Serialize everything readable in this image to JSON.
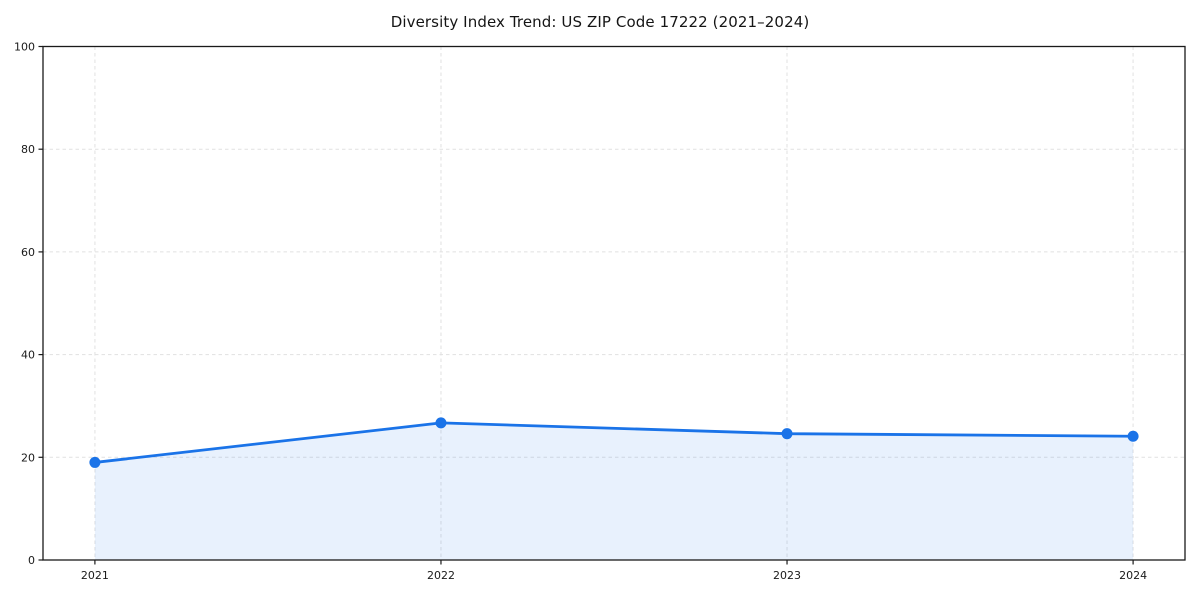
{
  "chart_data": {
    "type": "area",
    "title": "Diversity Index Trend: US ZIP Code 17222 (2021–2024)",
    "x": [
      2021,
      2022,
      2023,
      2024
    ],
    "x_tick_labels": [
      "2021",
      "2022",
      "2023",
      "2024"
    ],
    "series": [
      {
        "name": "Diversity Index",
        "values": [
          19.0,
          26.7,
          24.6,
          24.1
        ]
      }
    ],
    "xlabel": "",
    "ylabel": "",
    "ylim": [
      0,
      100
    ],
    "yticks": [
      0,
      20,
      40,
      60,
      80,
      100
    ],
    "ytick_labels": [
      "0",
      "20",
      "40",
      "60",
      "80",
      "100"
    ],
    "grid": true,
    "grid_style": "dashed",
    "legend_position": "none",
    "colors": {
      "line": "#1a73e8",
      "marker": "#1a73e8",
      "fill": "rgba(26, 115, 232, 0.10)",
      "grid": "#e1e1e1",
      "spine": "#1a1a1a",
      "tick_label": "#1a1a1a",
      "background": "#ffffff"
    }
  }
}
